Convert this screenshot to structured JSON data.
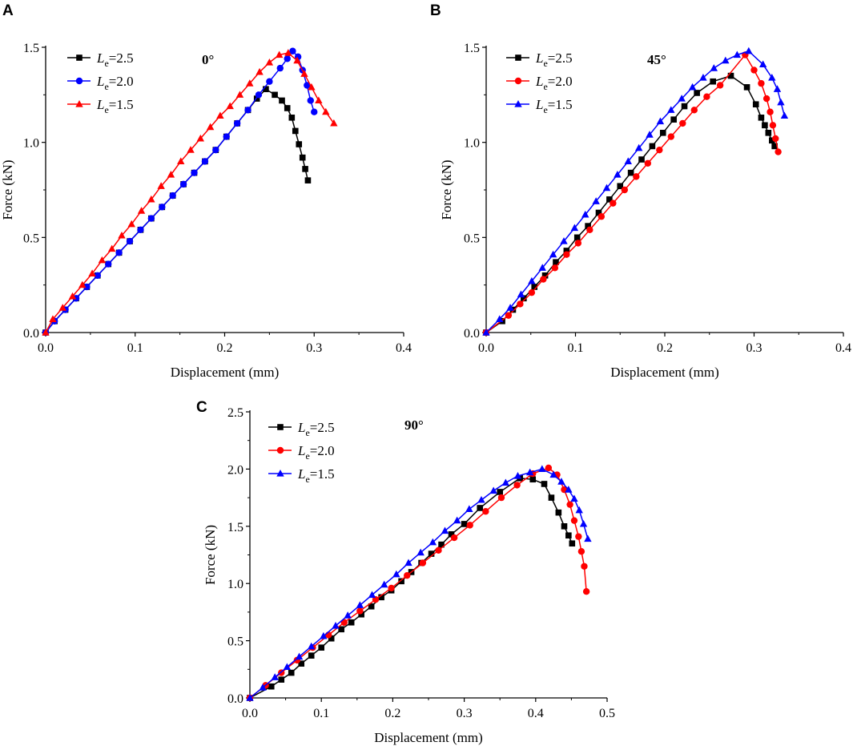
{
  "figure": {
    "panels": [
      "A",
      "B",
      "C"
    ]
  },
  "legend_symbol": "L",
  "legend_subscript": "e",
  "chart_data": [
    {
      "panel": "A",
      "type": "line",
      "annotation": "0°",
      "xlabel": "Displacement (mm)",
      "ylabel": "Force (kN)",
      "xlim": [
        0,
        0.4
      ],
      "ylim": [
        0,
        1.5
      ],
      "xticks": [
        "0.0",
        "0.1",
        "0.2",
        "0.3",
        "0.4"
      ],
      "yticks": [
        "0.0",
        "0.5",
        "1.0",
        "1.5"
      ],
      "legend_position": "top-left",
      "series": [
        {
          "name": "=2.5",
          "color": "#000000",
          "marker": "square",
          "x": [
            0.0,
            0.01,
            0.022,
            0.034,
            0.046,
            0.058,
            0.07,
            0.082,
            0.094,
            0.106,
            0.118,
            0.13,
            0.142,
            0.154,
            0.166,
            0.178,
            0.19,
            0.202,
            0.214,
            0.226,
            0.236,
            0.246,
            0.256,
            0.264,
            0.27,
            0.275,
            0.279,
            0.283,
            0.287,
            0.29,
            0.293
          ],
          "y": [
            0.0,
            0.06,
            0.12,
            0.18,
            0.24,
            0.3,
            0.36,
            0.42,
            0.48,
            0.54,
            0.6,
            0.66,
            0.72,
            0.78,
            0.84,
            0.9,
            0.96,
            1.03,
            1.1,
            1.17,
            1.23,
            1.28,
            1.25,
            1.22,
            1.18,
            1.13,
            1.06,
            0.99,
            0.92,
            0.86,
            0.8
          ]
        },
        {
          "name": "=2.0",
          "color": "#0000ff",
          "marker": "circle",
          "x": [
            0.0,
            0.01,
            0.022,
            0.034,
            0.046,
            0.058,
            0.07,
            0.082,
            0.094,
            0.106,
            0.118,
            0.13,
            0.142,
            0.154,
            0.166,
            0.178,
            0.19,
            0.202,
            0.214,
            0.226,
            0.238,
            0.25,
            0.262,
            0.27,
            0.276,
            0.282,
            0.287,
            0.292,
            0.296,
            0.3
          ],
          "y": [
            0.0,
            0.06,
            0.12,
            0.18,
            0.24,
            0.3,
            0.36,
            0.42,
            0.48,
            0.54,
            0.6,
            0.66,
            0.72,
            0.78,
            0.84,
            0.9,
            0.96,
            1.03,
            1.1,
            1.17,
            1.25,
            1.32,
            1.39,
            1.44,
            1.48,
            1.45,
            1.38,
            1.3,
            1.22,
            1.16
          ]
        },
        {
          "name": "=1.5",
          "color": "#ff0000",
          "marker": "triangle",
          "x": [
            0.0,
            0.008,
            0.019,
            0.03,
            0.041,
            0.052,
            0.063,
            0.074,
            0.085,
            0.096,
            0.107,
            0.118,
            0.129,
            0.14,
            0.151,
            0.162,
            0.173,
            0.184,
            0.195,
            0.206,
            0.217,
            0.228,
            0.239,
            0.25,
            0.261,
            0.271,
            0.281,
            0.289,
            0.297,
            0.305,
            0.313,
            0.322
          ],
          "y": [
            0.0,
            0.07,
            0.13,
            0.19,
            0.25,
            0.31,
            0.38,
            0.44,
            0.51,
            0.57,
            0.64,
            0.7,
            0.77,
            0.83,
            0.9,
            0.96,
            1.02,
            1.08,
            1.14,
            1.19,
            1.25,
            1.31,
            1.37,
            1.42,
            1.46,
            1.47,
            1.43,
            1.36,
            1.29,
            1.22,
            1.16,
            1.1
          ]
        }
      ]
    },
    {
      "panel": "B",
      "type": "line",
      "annotation": "45°",
      "xlabel": "Displacement (mm)",
      "ylabel": "Force (kN)",
      "xlim": [
        0,
        0.4
      ],
      "ylim": [
        0,
        1.5
      ],
      "xticks": [
        "0.0",
        "0.1",
        "0.2",
        "0.3",
        "0.4"
      ],
      "yticks": [
        "0.0",
        "0.5",
        "1.0",
        "1.5"
      ],
      "legend_position": "top-left",
      "series": [
        {
          "name": "=2.5",
          "color": "#000000",
          "marker": "square",
          "x": [
            0.0,
            0.018,
            0.03,
            0.042,
            0.054,
            0.066,
            0.078,
            0.09,
            0.102,
            0.114,
            0.126,
            0.138,
            0.15,
            0.162,
            0.174,
            0.186,
            0.198,
            0.21,
            0.222,
            0.236,
            0.254,
            0.274,
            0.292,
            0.302,
            0.308,
            0.312,
            0.316,
            0.32,
            0.323
          ],
          "y": [
            0.0,
            0.06,
            0.12,
            0.18,
            0.24,
            0.3,
            0.37,
            0.43,
            0.5,
            0.56,
            0.63,
            0.7,
            0.77,
            0.84,
            0.91,
            0.98,
            1.05,
            1.12,
            1.19,
            1.26,
            1.32,
            1.35,
            1.29,
            1.2,
            1.13,
            1.09,
            1.05,
            1.01,
            0.98
          ]
        },
        {
          "name": "=2.0",
          "color": "#ff0000",
          "marker": "circle",
          "x": [
            0.0,
            0.025,
            0.038,
            0.051,
            0.064,
            0.077,
            0.09,
            0.103,
            0.116,
            0.129,
            0.142,
            0.155,
            0.168,
            0.181,
            0.194,
            0.207,
            0.22,
            0.233,
            0.247,
            0.262,
            0.29,
            0.3,
            0.308,
            0.314,
            0.318,
            0.321,
            0.324,
            0.327
          ],
          "y": [
            0.0,
            0.09,
            0.15,
            0.21,
            0.28,
            0.34,
            0.41,
            0.47,
            0.54,
            0.61,
            0.68,
            0.75,
            0.82,
            0.89,
            0.96,
            1.03,
            1.1,
            1.17,
            1.24,
            1.3,
            1.46,
            1.38,
            1.31,
            1.23,
            1.16,
            1.09,
            1.02,
            0.95
          ]
        },
        {
          "name": "=1.5",
          "color": "#0000ff",
          "marker": "triangle",
          "x": [
            0.0,
            0.015,
            0.027,
            0.039,
            0.051,
            0.063,
            0.075,
            0.087,
            0.099,
            0.111,
            0.123,
            0.135,
            0.147,
            0.159,
            0.171,
            0.183,
            0.195,
            0.207,
            0.219,
            0.231,
            0.243,
            0.255,
            0.268,
            0.281,
            0.294,
            0.31,
            0.32,
            0.326,
            0.33,
            0.334
          ],
          "y": [
            0.0,
            0.07,
            0.13,
            0.2,
            0.27,
            0.34,
            0.41,
            0.48,
            0.55,
            0.62,
            0.69,
            0.76,
            0.83,
            0.9,
            0.97,
            1.04,
            1.11,
            1.17,
            1.23,
            1.29,
            1.34,
            1.39,
            1.43,
            1.46,
            1.48,
            1.41,
            1.34,
            1.28,
            1.21,
            1.14
          ]
        }
      ]
    },
    {
      "panel": "C",
      "type": "line",
      "annotation": "90°",
      "xlabel": "Displacement (mm)",
      "ylabel": "Force (kN)",
      "xlim": [
        0,
        0.5
      ],
      "ylim": [
        0,
        2.5
      ],
      "xticks": [
        "0.0",
        "0.1",
        "0.2",
        "0.3",
        "0.4",
        "0.5"
      ],
      "yticks": [
        "0.0",
        "0.5",
        "1.0",
        "1.5",
        "2.0",
        "2.5"
      ],
      "legend_position": "top-left",
      "series": [
        {
          "name": "=2.5",
          "color": "#000000",
          "marker": "square",
          "x": [
            0.0,
            0.03,
            0.044,
            0.058,
            0.072,
            0.086,
            0.1,
            0.114,
            0.128,
            0.142,
            0.156,
            0.17,
            0.184,
            0.198,
            0.212,
            0.226,
            0.24,
            0.254,
            0.268,
            0.282,
            0.3,
            0.322,
            0.35,
            0.378,
            0.396,
            0.412,
            0.422,
            0.432,
            0.44,
            0.446,
            0.451
          ],
          "y": [
            0.0,
            0.1,
            0.16,
            0.22,
            0.3,
            0.37,
            0.44,
            0.52,
            0.6,
            0.66,
            0.73,
            0.8,
            0.88,
            0.94,
            1.02,
            1.1,
            1.18,
            1.26,
            1.34,
            1.43,
            1.52,
            1.66,
            1.8,
            1.92,
            1.91,
            1.87,
            1.75,
            1.62,
            1.5,
            1.42,
            1.35
          ]
        },
        {
          "name": "=2.0",
          "color": "#ff0000",
          "marker": "circle",
          "x": [
            0.0,
            0.022,
            0.044,
            0.066,
            0.088,
            0.11,
            0.132,
            0.154,
            0.176,
            0.198,
            0.22,
            0.242,
            0.264,
            0.286,
            0.308,
            0.33,
            0.352,
            0.374,
            0.396,
            0.418,
            0.43,
            0.44,
            0.448,
            0.454,
            0.46,
            0.464,
            0.468,
            0.471
          ],
          "y": [
            0.0,
            0.11,
            0.22,
            0.33,
            0.44,
            0.55,
            0.66,
            0.76,
            0.86,
            0.96,
            1.07,
            1.18,
            1.29,
            1.4,
            1.51,
            1.63,
            1.75,
            1.86,
            1.96,
            2.01,
            1.95,
            1.82,
            1.69,
            1.55,
            1.41,
            1.28,
            1.15,
            0.93
          ]
        },
        {
          "name": "=1.5",
          "color": "#0000ff",
          "marker": "triangle",
          "x": [
            0.0,
            0.018,
            0.035,
            0.052,
            0.069,
            0.086,
            0.103,
            0.12,
            0.137,
            0.154,
            0.171,
            0.188,
            0.205,
            0.222,
            0.239,
            0.256,
            0.273,
            0.29,
            0.307,
            0.324,
            0.341,
            0.358,
            0.375,
            0.392,
            0.409,
            0.425,
            0.436,
            0.446,
            0.454,
            0.461,
            0.467,
            0.473
          ],
          "y": [
            0.0,
            0.09,
            0.18,
            0.27,
            0.36,
            0.45,
            0.54,
            0.63,
            0.72,
            0.81,
            0.9,
            0.99,
            1.08,
            1.18,
            1.27,
            1.36,
            1.46,
            1.55,
            1.65,
            1.73,
            1.81,
            1.88,
            1.94,
            1.97,
            2.0,
            1.95,
            1.89,
            1.82,
            1.74,
            1.64,
            1.52,
            1.39
          ]
        }
      ]
    }
  ]
}
